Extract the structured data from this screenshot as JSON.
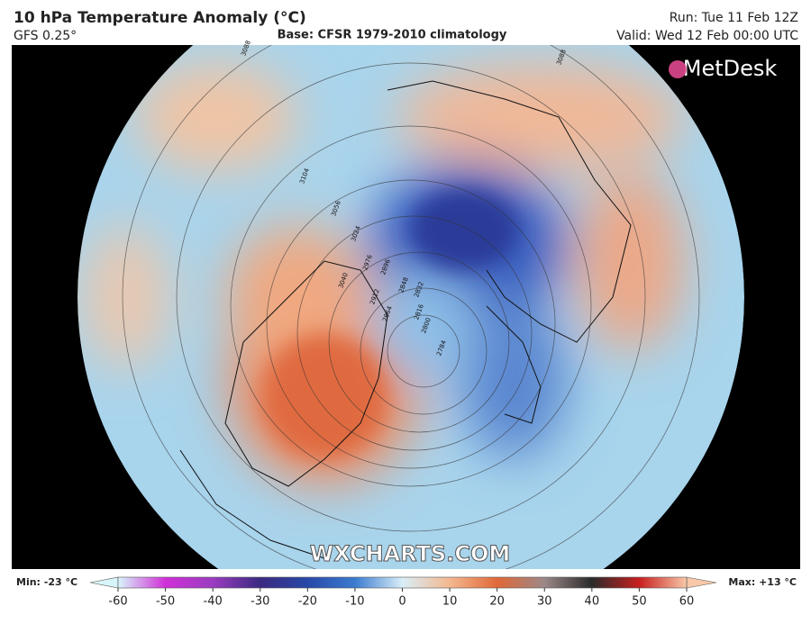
{
  "header": {
    "title": "10 hPa Temperature Anomaly (°C)",
    "model": "GFS 0.25°",
    "base": "Base: CFSR 1979-2010 climatology",
    "run": "Run: Tue 11 Feb 12Z",
    "valid": "Valid: Wed 12 Feb 00:00 UTC"
  },
  "logo": "MetDesk",
  "watermark": "WXCHARTS.COM",
  "contour_labels": [
    "3088",
    "3104",
    "3056",
    "3040",
    "3024",
    "2976",
    "2912",
    "2896",
    "2864",
    "2848",
    "2832",
    "2816",
    "2800",
    "2784",
    "3088"
  ],
  "colorbar": {
    "min_label": "Min: -23 °C",
    "max_label": "Max: +13 °C",
    "ticks": [
      -60,
      -50,
      -40,
      -30,
      -20,
      -10,
      0,
      10,
      20,
      30,
      40,
      50,
      60
    ]
  }
}
